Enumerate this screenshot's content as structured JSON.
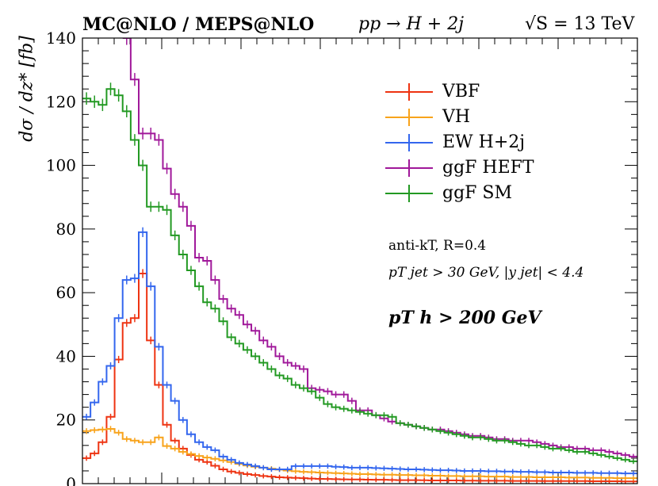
{
  "header": {
    "left": "MC@NLO / MEPS@NLO",
    "middle": "pp → H + 2j",
    "right": "√S = 13 TeV"
  },
  "notes": {
    "algo": "anti-kT, R=0.4",
    "jet_cut": "pT jet > 30 GeV, |y jet| < 4.4",
    "higgs_cut": "pT h > 200 GeV"
  },
  "chart_data": {
    "type": "line",
    "title": "",
    "xlabel": "",
    "ylabel": "dσ / dz* [fb]",
    "ylim": [
      0,
      140
    ],
    "yticks": [
      0,
      20,
      40,
      60,
      80,
      100,
      120,
      140
    ],
    "x_bins": 69,
    "grid": false,
    "legend_position": "top-right",
    "series": [
      {
        "name": "VBF",
        "color": "#ee3311",
        "values": [
          8,
          9.5,
          13,
          21,
          39,
          50.5,
          52,
          66,
          45,
          31,
          18.5,
          13.5,
          11,
          9,
          7.5,
          6.8,
          5.6,
          4.5,
          3.8,
          3.4,
          3,
          2.7,
          2.4,
          2.2,
          2,
          1.9,
          1.8,
          1.7,
          1.6,
          1.5,
          1.45,
          1.4,
          1.35,
          1.3,
          1.3,
          1.25,
          1.2,
          1.2,
          1.15,
          1.1,
          1.1,
          1.1,
          1.05,
          1,
          1,
          1,
          1,
          0.95,
          0.95,
          0.9,
          0.9,
          0.9,
          0.9,
          0.85,
          0.85,
          0.85,
          0.85,
          0.8,
          0.8,
          0.8,
          0.8,
          0.8,
          0.8,
          0.75,
          0.75,
          0.75,
          0.75,
          0.7,
          0.7
        ]
      },
      {
        "name": "VH",
        "color": "#f8a31b",
        "values": [
          16.5,
          16.8,
          17,
          17.2,
          16,
          14,
          13.5,
          13,
          13,
          14.5,
          11.8,
          11,
          10,
          9.3,
          8.7,
          8.2,
          7.8,
          7.3,
          6.8,
          6.2,
          5.7,
          5.3,
          5,
          4.7,
          4.4,
          4.1,
          3.9,
          3.7,
          3.6,
          3.5,
          3.4,
          3.3,
          3.2,
          3.1,
          3,
          3,
          2.9,
          2.8,
          2.8,
          2.7,
          2.7,
          2.6,
          2.6,
          2.5,
          2.5,
          2.4,
          2.4,
          2.3,
          2.3,
          2.3,
          2.2,
          2.2,
          2.2,
          2.1,
          2.1,
          2.1,
          2,
          2,
          2,
          2,
          1.9,
          1.9,
          1.9,
          1.8,
          1.8,
          1.8,
          1.7,
          1.7,
          1.7
        ]
      },
      {
        "name": "EW H+2j",
        "color": "#3366ee",
        "values": [
          21,
          25.5,
          32,
          37,
          52,
          64,
          64.5,
          79,
          62,
          43,
          31,
          26,
          20,
          15.5,
          13,
          11.5,
          10.5,
          8.5,
          7.5,
          6.5,
          6,
          5.5,
          5,
          4.5,
          4.5,
          4.5,
          5.5,
          5.5,
          5.5,
          5.5,
          5.5,
          5.3,
          5.2,
          5,
          5,
          5,
          4.9,
          4.8,
          4.7,
          4.6,
          4.5,
          4.5,
          4.4,
          4.3,
          4.2,
          4.2,
          4.1,
          4,
          4,
          4,
          3.9,
          3.9,
          3.8,
          3.8,
          3.7,
          3.7,
          3.6,
          3.6,
          3.5,
          3.5,
          3.5,
          3.4,
          3.4,
          3.4,
          3.3,
          3.3,
          3.3,
          3.2,
          3.2
        ]
      },
      {
        "name": "ggF HEFT",
        "color": "#a0189a",
        "values": [
          null,
          null,
          null,
          null,
          null,
          140,
          127,
          110,
          110,
          108,
          99,
          91,
          87,
          81,
          71,
          70,
          64,
          58,
          55,
          53,
          50,
          48,
          45,
          43,
          40,
          38,
          37,
          36,
          30,
          29.5,
          29,
          28,
          28,
          26,
          23,
          23,
          21.5,
          20.5,
          19.5,
          19,
          18.5,
          18,
          17.5,
          17,
          17,
          16.5,
          16,
          15.5,
          15,
          15,
          14.5,
          14,
          14,
          13.5,
          13.5,
          13.5,
          13,
          12.5,
          12,
          11.5,
          11.5,
          11,
          11,
          10.5,
          10.5,
          10,
          9.5,
          9,
          8.5
        ]
      },
      {
        "name": "ggF SM",
        "color": "#229922",
        "values": [
          121,
          120,
          119,
          124,
          122,
          117,
          108,
          100,
          87,
          87,
          86,
          78,
          72,
          67,
          62,
          57,
          55,
          51,
          46,
          44,
          42,
          40,
          38,
          36,
          34,
          33,
          31,
          30,
          29,
          27,
          25,
          24,
          23.5,
          23,
          22.5,
          22,
          21.5,
          21.5,
          21,
          19,
          18.5,
          18,
          17.5,
          17,
          16.5,
          16,
          15.5,
          15,
          14.5,
          14.5,
          14,
          13.5,
          13.5,
          13,
          12.5,
          12,
          12,
          11.5,
          11,
          11,
          10.5,
          10,
          10,
          9.5,
          9,
          8.5,
          8,
          7.5,
          7
        ]
      }
    ]
  }
}
